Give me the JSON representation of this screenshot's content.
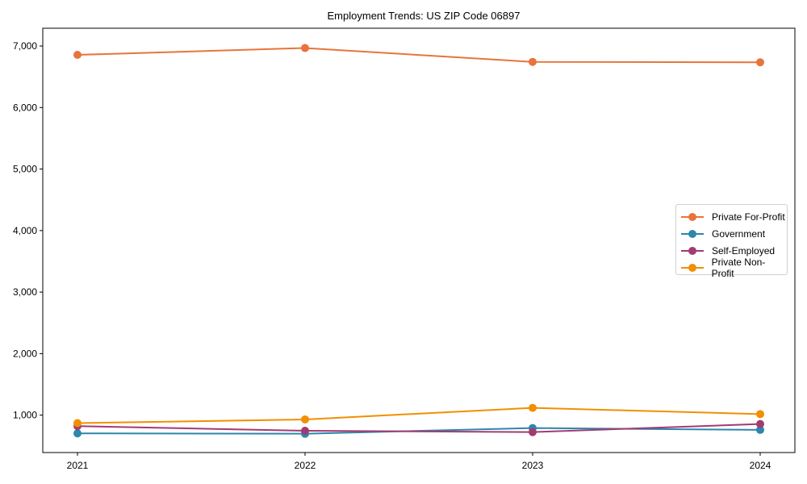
{
  "chart_data": {
    "type": "line",
    "title": "Employment Trends: US ZIP Code 06897",
    "xlabel": "",
    "ylabel": "",
    "x": [
      "2021",
      "2022",
      "2023",
      "2024"
    ],
    "ylim": [
      392,
      7289
    ],
    "yticks": [
      1000,
      2000,
      3000,
      4000,
      5000,
      6000,
      7000
    ],
    "ytick_labels": [
      "1,000",
      "2,000",
      "3,000",
      "4,000",
      "5,000",
      "6,000",
      "7,000"
    ],
    "grid": false,
    "legend_position": "center right",
    "series": [
      {
        "name": "Private For-Profit",
        "color": "#E8743B",
        "values": [
          6856,
          6967,
          6742,
          6735
        ]
      },
      {
        "name": "Government",
        "color": "#2E86AB",
        "values": [
          704,
          698,
          790,
          760
        ]
      },
      {
        "name": "Self-Employed",
        "color": "#A23B72",
        "values": [
          822,
          746,
          724,
          856
        ]
      },
      {
        "name": "Private Non-Profit",
        "color": "#F18F01",
        "values": [
          870,
          930,
          1118,
          1017
        ]
      }
    ]
  }
}
